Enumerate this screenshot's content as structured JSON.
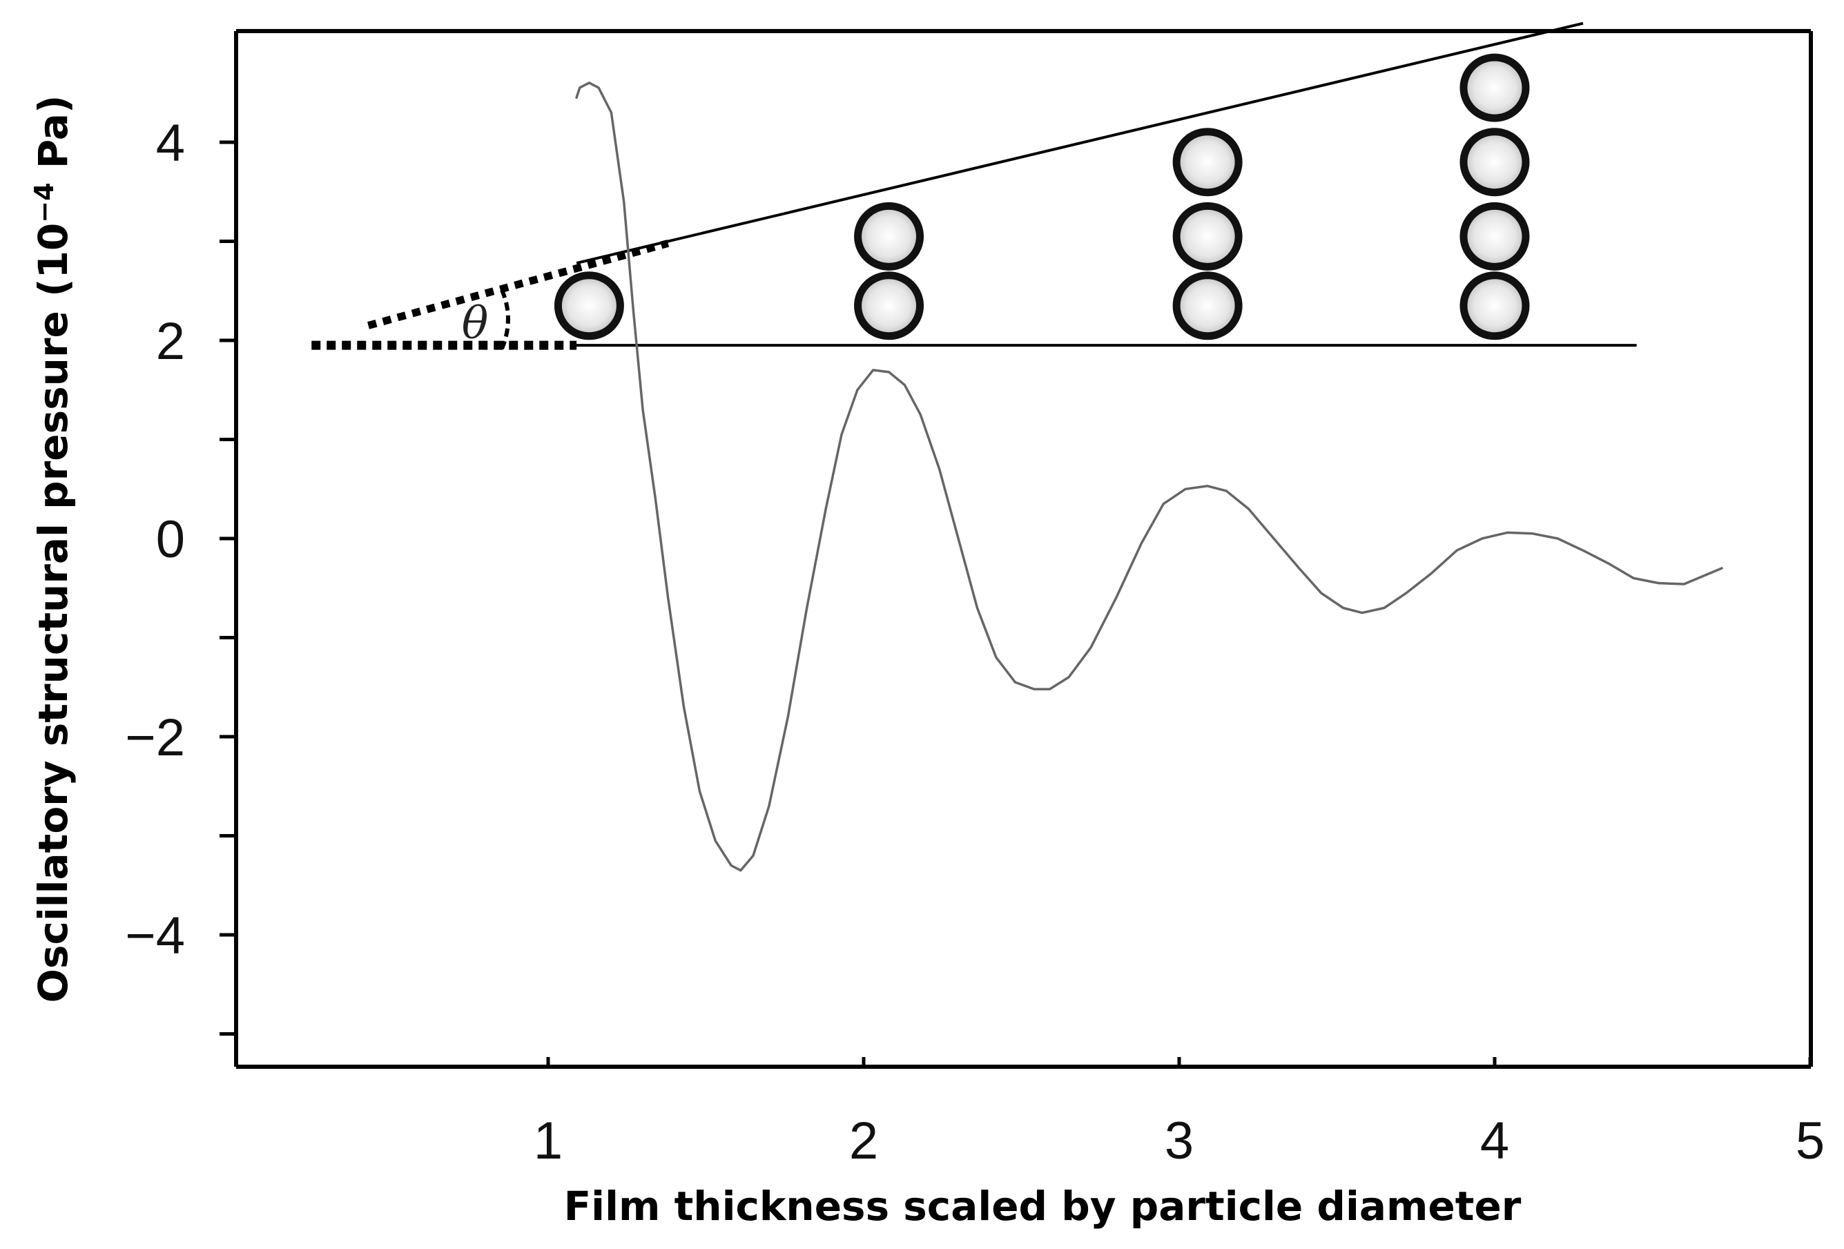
{
  "chart_data": {
    "type": "line",
    "xlabel": "Film thickness scaled by particle diameter",
    "ylabel_main": "Oscillatory structural pressure (10",
    "ylabel_exponent": "−4",
    "ylabel_unit": " Pa)",
    "xlim": [
      0,
      5
    ],
    "ylim": [
      -5.4,
      5.1
    ],
    "x_ticks": [
      {
        "value": 1,
        "label": "1"
      },
      {
        "value": 2,
        "label": "2"
      },
      {
        "value": 3,
        "label": "3"
      },
      {
        "value": 4,
        "label": "4"
      },
      {
        "value": 5,
        "label": "5"
      }
    ],
    "y_ticks": [
      {
        "value": 4,
        "label": "4"
      },
      {
        "value": 3,
        "label": ""
      },
      {
        "value": 2,
        "label": "2"
      },
      {
        "value": 1,
        "label": ""
      },
      {
        "value": 0,
        "label": "0"
      },
      {
        "value": -1,
        "label": ""
      },
      {
        "value": -2,
        "label": "−2"
      },
      {
        "value": -3,
        "label": ""
      },
      {
        "value": -4,
        "label": "−4"
      },
      {
        "value": -5,
        "label": ""
      }
    ],
    "grid": false,
    "series": [
      {
        "color": "#666666",
        "points": [
          [
            1.09,
            4.45
          ],
          [
            1.1,
            4.55
          ],
          [
            1.13,
            4.6
          ],
          [
            1.16,
            4.55
          ],
          [
            1.2,
            4.3
          ],
          [
            1.24,
            3.4
          ],
          [
            1.27,
            2.3
          ],
          [
            1.3,
            1.3
          ],
          [
            1.34,
            0.4
          ],
          [
            1.38,
            -0.6
          ],
          [
            1.43,
            -1.7
          ],
          [
            1.48,
            -2.55
          ],
          [
            1.53,
            -3.05
          ],
          [
            1.58,
            -3.3
          ],
          [
            1.61,
            -3.35
          ],
          [
            1.65,
            -3.2
          ],
          [
            1.7,
            -2.7
          ],
          [
            1.76,
            -1.8
          ],
          [
            1.82,
            -0.7
          ],
          [
            1.88,
            0.3
          ],
          [
            1.93,
            1.05
          ],
          [
            1.98,
            1.5
          ],
          [
            2.03,
            1.7
          ],
          [
            2.08,
            1.68
          ],
          [
            2.13,
            1.55
          ],
          [
            2.18,
            1.25
          ],
          [
            2.24,
            0.7
          ],
          [
            2.3,
            0.0
          ],
          [
            2.36,
            -0.7
          ],
          [
            2.42,
            -1.2
          ],
          [
            2.48,
            -1.45
          ],
          [
            2.54,
            -1.52
          ],
          [
            2.59,
            -1.52
          ],
          [
            2.65,
            -1.4
          ],
          [
            2.72,
            -1.1
          ],
          [
            2.8,
            -0.6
          ],
          [
            2.88,
            -0.05
          ],
          [
            2.95,
            0.35
          ],
          [
            3.02,
            0.5
          ],
          [
            3.09,
            0.53
          ],
          [
            3.15,
            0.48
          ],
          [
            3.22,
            0.3
          ],
          [
            3.3,
            0.0
          ],
          [
            3.38,
            -0.3
          ],
          [
            3.45,
            -0.55
          ],
          [
            3.52,
            -0.7
          ],
          [
            3.58,
            -0.75
          ],
          [
            3.65,
            -0.7
          ],
          [
            3.72,
            -0.55
          ],
          [
            3.8,
            -0.35
          ],
          [
            3.88,
            -0.12
          ],
          [
            3.96,
            0.0
          ],
          [
            4.04,
            0.06
          ],
          [
            4.12,
            0.05
          ],
          [
            4.2,
            0.0
          ],
          [
            4.28,
            -0.12
          ],
          [
            4.36,
            -0.25
          ],
          [
            4.44,
            -0.4
          ],
          [
            4.52,
            -0.45
          ],
          [
            4.6,
            -0.46
          ],
          [
            4.66,
            -0.38
          ],
          [
            4.72,
            -0.3
          ]
        ]
      }
    ],
    "annotations": {
      "angle_symbol": "θ",
      "baseline": {
        "x_start": 1.09,
        "x_end": 4.45,
        "y": 1.95
      },
      "upper_line": {
        "x_start": 1.09,
        "y_start": 2.78,
        "x_end": 4.28,
        "y_end": 5.2
      },
      "dotted_baseline": {
        "x_start": 0.25,
        "x_end": 1.09,
        "y": 1.95
      },
      "dotted_upper": {
        "x_start": 0.43,
        "y_start": 2.15,
        "x_end": 1.38,
        "y_end": 2.98
      },
      "particle_stacks": [
        {
          "x": 1.13,
          "y_values": [
            2.35
          ]
        },
        {
          "x": 2.08,
          "y_values": [
            2.35,
            3.05
          ]
        },
        {
          "x": 3.09,
          "y_values": [
            2.35,
            3.05,
            3.8
          ]
        },
        {
          "x": 4.0,
          "y_values": [
            2.35,
            3.05,
            3.8,
            4.55
          ]
        }
      ]
    }
  }
}
